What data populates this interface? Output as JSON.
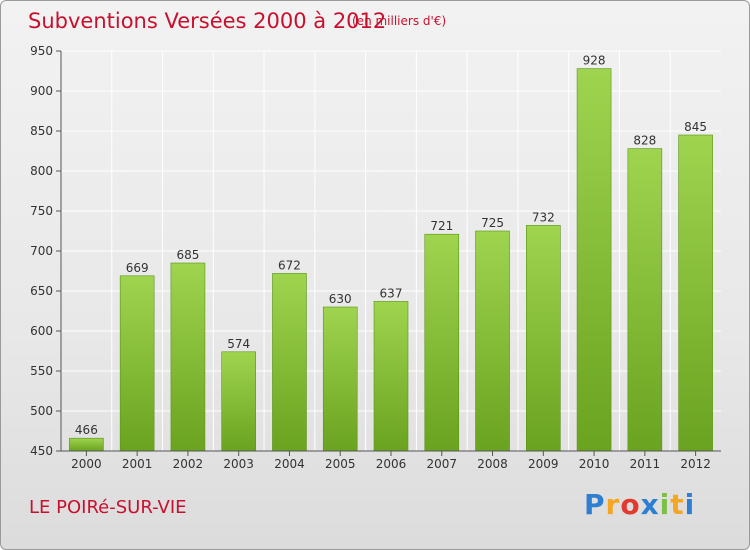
{
  "header": {
    "title": "Subventions Versées 2000 à 2012",
    "subtitle": "(en milliers d'€)"
  },
  "footer": {
    "commune": "LE POIRé-SUR-VIE",
    "logo_text": "Proxiti"
  },
  "colors": {
    "accent": "#c8102e",
    "bar_top": "#9fd44f",
    "bar_bottom": "#6aa320"
  },
  "chart_data": {
    "type": "bar",
    "title": "Subventions Versées 2000 à 2012",
    "subtitle": "(en milliers d'€)",
    "xlabel": "",
    "ylabel": "",
    "categories": [
      "2000",
      "2001",
      "2002",
      "2003",
      "2004",
      "2005",
      "2006",
      "2007",
      "2008",
      "2009",
      "2010",
      "2011",
      "2012"
    ],
    "values": [
      466,
      669,
      685,
      574,
      672,
      630,
      637,
      721,
      725,
      732,
      928,
      828,
      845
    ],
    "ylim": [
      450,
      950
    ],
    "yticks": [
      450,
      500,
      550,
      600,
      650,
      700,
      750,
      800,
      850,
      900,
      950
    ],
    "grid": true,
    "legend": "none"
  }
}
